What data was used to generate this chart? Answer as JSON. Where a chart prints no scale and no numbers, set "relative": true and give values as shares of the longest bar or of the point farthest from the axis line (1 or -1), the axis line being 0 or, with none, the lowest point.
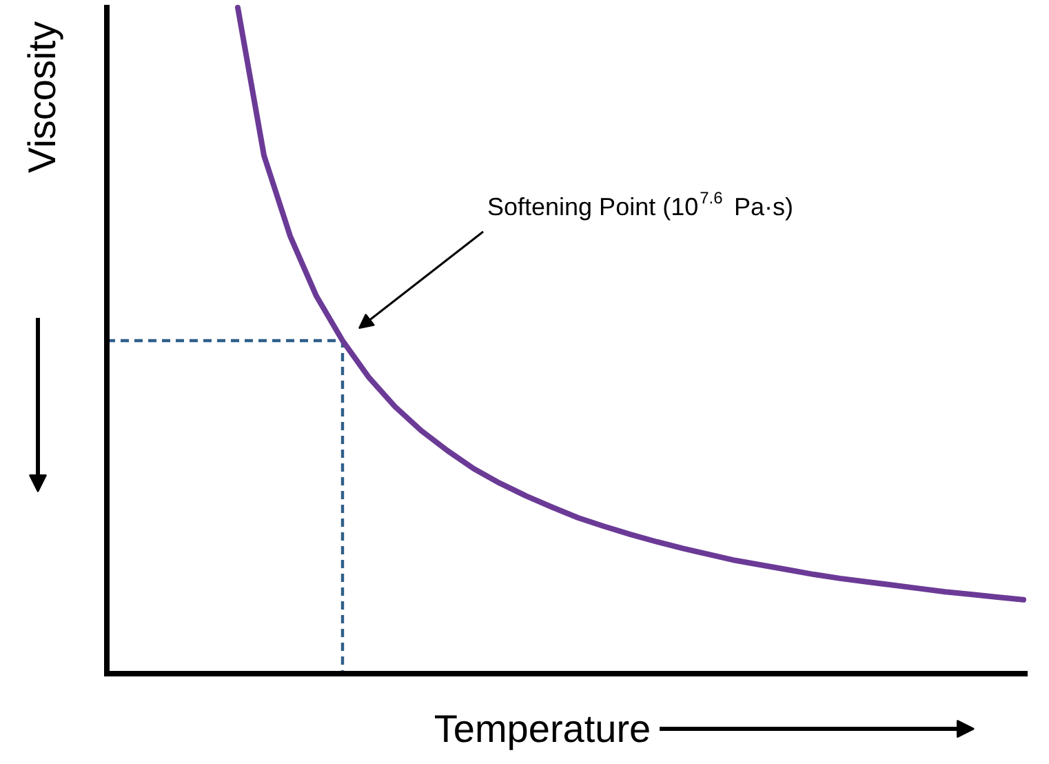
{
  "chart_data": {
    "type": "line",
    "relative": true,
    "xlabel": "Temperature",
    "ylabel": "Viscosity",
    "categories": [
      null,
      null,
      null,
      null,
      null,
      null,
      null,
      null,
      null,
      null,
      null,
      null,
      null,
      null,
      null,
      null,
      null,
      null,
      null,
      null,
      null,
      null,
      null,
      null,
      null,
      null,
      null,
      null,
      null,
      null,
      null,
      null,
      null,
      null,
      null,
      null
    ],
    "series": [
      {
        "color": "#6b3a96",
        "values": [
          null,
          null,
          null,
          null,
          null,
          1.0,
          0.778,
          0.657,
          0.567,
          0.5,
          0.445,
          0.401,
          0.365,
          0.335,
          0.308,
          0.286,
          0.267,
          0.25,
          0.234,
          0.221,
          0.209,
          0.198,
          0.188,
          0.179,
          0.17,
          0.163,
          0.156,
          0.149,
          0.143,
          0.138,
          0.133,
          0.128,
          0.123,
          0.119,
          0.115,
          0.111
        ]
      }
    ],
    "ref_lines": [
      {
        "axis": "y",
        "value": 0.5,
        "color": "#2f5f8a",
        "line_style": "dashed"
      }
    ],
    "annotations": [
      "Softening Point (10$^{7.6}$ Pa·s)"
    ]
  }
}
